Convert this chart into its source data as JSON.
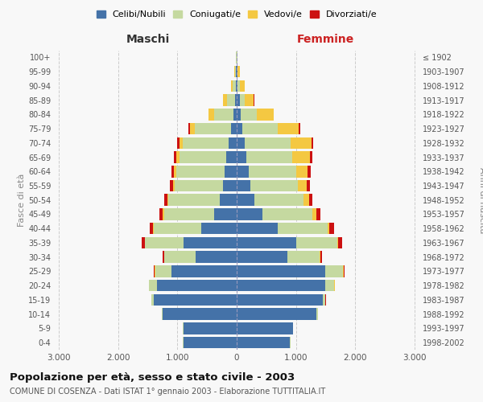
{
  "age_groups": [
    "0-4",
    "5-9",
    "10-14",
    "15-19",
    "20-24",
    "25-29",
    "30-34",
    "35-39",
    "40-44",
    "45-49",
    "50-54",
    "55-59",
    "60-64",
    "65-69",
    "70-74",
    "75-79",
    "80-84",
    "85-89",
    "90-94",
    "95-99",
    "100+"
  ],
  "birth_years": [
    "1998-2002",
    "1993-1997",
    "1988-1992",
    "1983-1987",
    "1978-1982",
    "1973-1977",
    "1968-1972",
    "1963-1967",
    "1958-1962",
    "1953-1957",
    "1948-1952",
    "1943-1947",
    "1938-1942",
    "1933-1937",
    "1928-1932",
    "1923-1927",
    "1918-1922",
    "1913-1917",
    "1908-1912",
    "1903-1907",
    "≤ 1902"
  ],
  "males": {
    "celibi": [
      900,
      900,
      1250,
      1400,
      1350,
      1100,
      700,
      900,
      600,
      380,
      280,
      230,
      200,
      170,
      130,
      90,
      50,
      30,
      20,
      10,
      5
    ],
    "coniugati": [
      5,
      5,
      15,
      40,
      130,
      280,
      520,
      650,
      800,
      850,
      870,
      820,
      820,
      800,
      780,
      620,
      330,
      130,
      50,
      15,
      5
    ],
    "vedovi": [
      1,
      1,
      1,
      2,
      3,
      2,
      3,
      5,
      8,
      15,
      25,
      30,
      45,
      50,
      60,
      80,
      90,
      65,
      25,
      10,
      2
    ],
    "divorziati": [
      0,
      0,
      1,
      2,
      5,
      15,
      25,
      50,
      60,
      55,
      50,
      45,
      40,
      35,
      30,
      20,
      10,
      5,
      2,
      0,
      0
    ]
  },
  "females": {
    "nubili": [
      900,
      950,
      1350,
      1450,
      1500,
      1500,
      850,
      1000,
      700,
      430,
      300,
      230,
      200,
      160,
      130,
      100,
      70,
      50,
      20,
      10,
      5
    ],
    "coniugate": [
      5,
      5,
      20,
      50,
      150,
      300,
      550,
      700,
      830,
      850,
      830,
      800,
      800,
      780,
      780,
      600,
      270,
      90,
      40,
      10,
      3
    ],
    "vedove": [
      1,
      1,
      1,
      2,
      3,
      4,
      8,
      15,
      30,
      60,
      90,
      150,
      200,
      300,
      350,
      350,
      280,
      150,
      80,
      30,
      5
    ],
    "divorziate": [
      0,
      0,
      1,
      2,
      8,
      20,
      30,
      65,
      80,
      70,
      60,
      55,
      50,
      40,
      30,
      20,
      10,
      5,
      2,
      0,
      0
    ]
  },
  "colors": {
    "celibi": "#4472a8",
    "coniugati": "#c5d9a0",
    "vedovi": "#f4c842",
    "divorziati": "#cc1111"
  },
  "xlim": 3100,
  "title": "Popolazione per età, sesso e stato civile - 2003",
  "subtitle": "COMUNE DI COSENZA - Dati ISTAT 1° gennaio 2003 - Elaborazione TUTTITALIA.IT",
  "ylabel_left": "Fasce di età",
  "xlabel_left": "Maschi",
  "xlabel_right": "Femmine",
  "background_color": "#f8f8f8",
  "grid_color": "#cccccc"
}
